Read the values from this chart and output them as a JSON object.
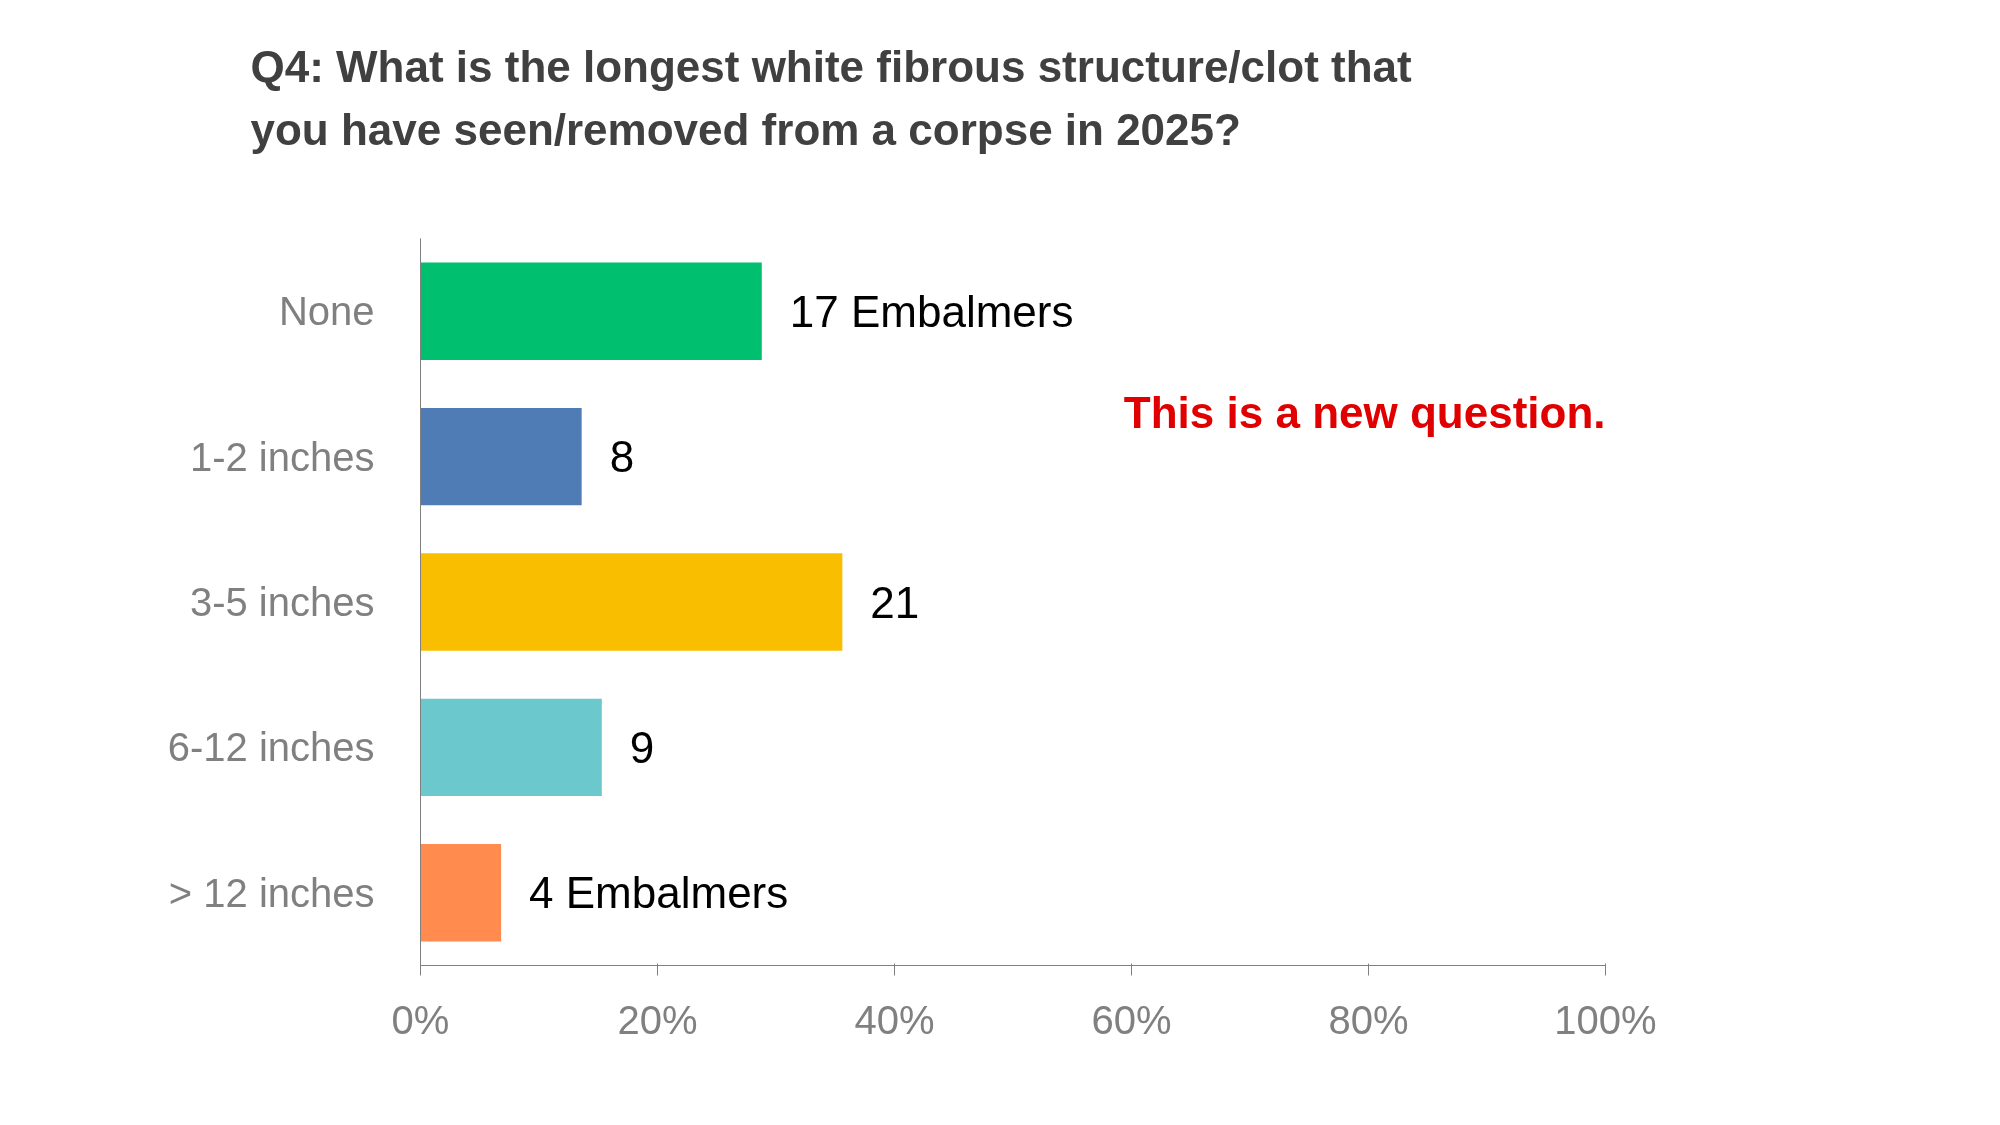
{
  "chart_data": {
    "type": "bar",
    "orientation": "horizontal",
    "title": "Q4: What is the longest white fibrous structure/clot that you have seen/removed from a corpse in 2025?",
    "categories": [
      "None",
      "1-2 inches",
      "3-5 inches",
      "6-12 inches",
      "> 12 inches"
    ],
    "values": [
      28.8,
      13.6,
      35.6,
      15.3,
      6.8
    ],
    "colors": [
      "#00bf6f",
      "#507cb6",
      "#f9be00",
      "#6bc8cd",
      "#ff8b4f"
    ],
    "xlim": [
      0,
      100
    ],
    "xticks": [
      {
        "value": 0,
        "label": "0%"
      },
      {
        "value": 20,
        "label": "20%"
      },
      {
        "value": 40,
        "label": "40%"
      },
      {
        "value": 60,
        "label": "60%"
      },
      {
        "value": 80,
        "label": "80%"
      },
      {
        "value": 100,
        "label": "100%"
      }
    ],
    "annotations": [
      {
        "text": "17 Embalmers",
        "x": 28.8,
        "y": "None"
      },
      {
        "text": "8",
        "x": 13.6,
        "y": "1-2 inches"
      },
      {
        "text": "21",
        "x": 35.6,
        "y": "3-5 inches"
      },
      {
        "text": "9",
        "x": 15.3,
        "y": "6-12 inches"
      },
      {
        "text": "4 Embalmers",
        "x": 6.8,
        "y": "> 12 inches"
      },
      "This is a new question."
    ],
    "grid": false
  }
}
